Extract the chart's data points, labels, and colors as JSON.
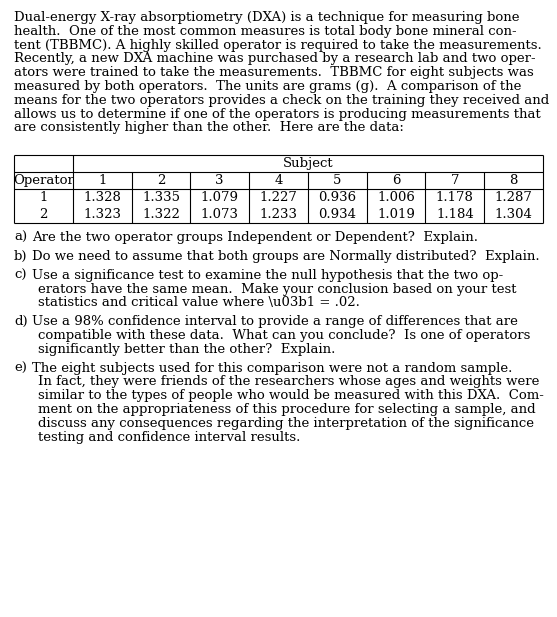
{
  "bg_color": "#ffffff",
  "text_color": "#000000",
  "paragraph_lines": [
    "Dual-energy X-ray absorptiometry (DXA) is a technique for measuring bone",
    "health.  One of the most common measures is total body bone mineral con-",
    "tent (TBBMC). A highly skilled operator is required to take the measurements.",
    "Recently, a new DXA machine was purchased by a research lab and two oper-",
    "ators were trained to take the measurements.  TBBMC for eight subjects was",
    "measured by both operators.  The units are grams (g).  A comparison of the",
    "means for the two operators provides a check on the training they received and",
    "allows us to determine if one of the operators is producing measurements that",
    "are consistently higher than the other.  Here are the data:"
  ],
  "table_subject_label": "Subject",
  "table_col_headers": [
    "Operator",
    "1",
    "2",
    "3",
    "4",
    "5",
    "6",
    "7",
    "8"
  ],
  "table_row1_label": "1",
  "table_row2_label": "2",
  "table_row1_data": [
    "1.328",
    "1.335",
    "1.079",
    "1.227",
    "0.936",
    "1.006",
    "1.178",
    "1.287"
  ],
  "table_row2_data": [
    "1.323",
    "1.322",
    "1.073",
    "1.233",
    "0.934",
    "1.019",
    "1.184",
    "1.304"
  ],
  "question_a_label": "a)",
  "question_a_lines": [
    "Are the two operator groups Independent or Dependent?  Explain."
  ],
  "question_b_label": "b)",
  "question_b_lines": [
    "Do we need to assume that both groups are Normally distributed?  Explain."
  ],
  "question_c_label": "c)",
  "question_c_lines": [
    "Use a significance test to examine the null hypothesis that the two op-",
    "erators have the same mean.  Make your conclusion based on your test",
    "statistics and critical value where \\u03b1 = .02."
  ],
  "question_d_label": "d)",
  "question_d_lines": [
    "Use a 98% confidence interval to provide a range of differences that are",
    "compatible with these data.  What can you conclude?  Is one of operators",
    "significantly better than the other?  Explain."
  ],
  "question_e_label": "e)",
  "question_e_lines": [
    "The eight subjects used for this comparison were not a random sample.",
    "In fact, they were friends of the researchers whose ages and weights were",
    "similar to the types of people who would be measured with this DXA.  Com-",
    "ment on the appropriateness of this procedure for selecting a sample, and",
    "discuss any consequences regarding the interpretation of the significance",
    "testing and confidence interval results."
  ],
  "font_size": 9.5,
  "font_family": "DejaVu Serif"
}
